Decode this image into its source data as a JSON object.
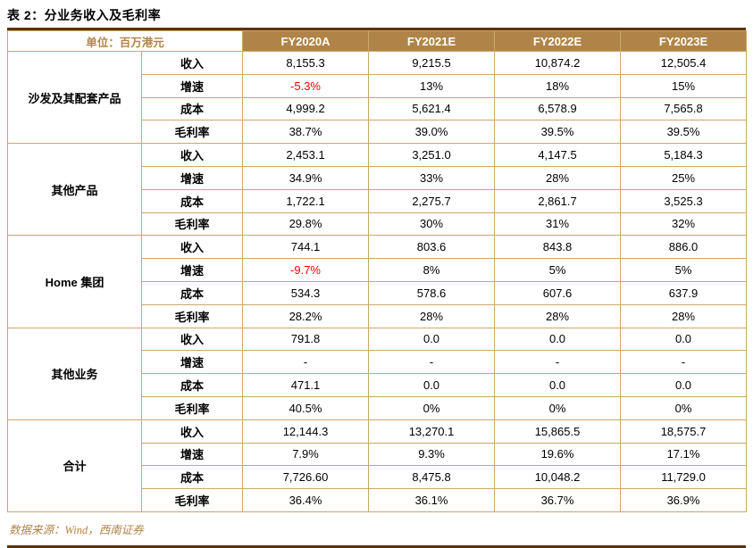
{
  "title": "表 2：分业务收入及毛利率",
  "unit_label": "单位：百万港元",
  "columns": [
    "FY2020A",
    "FY2021E",
    "FY2022E",
    "FY2023E"
  ],
  "groups": [
    {
      "name": "沙发及其配套产品",
      "rows": [
        {
          "metric": "收入",
          "values": [
            "8,155.3",
            "9,215.5",
            "10,874.2",
            "12,505.4"
          ],
          "red": []
        },
        {
          "metric": "增速",
          "values": [
            "-5.3%",
            "13%",
            "18%",
            "15%"
          ],
          "red": [
            0
          ]
        },
        {
          "metric": "成本",
          "values": [
            "4,999.2",
            "5,621.4",
            "6,578.9",
            "7,565.8"
          ],
          "red": []
        },
        {
          "metric": "毛利率",
          "values": [
            "38.7%",
            "39.0%",
            "39.5%",
            "39.5%"
          ],
          "red": []
        }
      ]
    },
    {
      "name": "其他产品",
      "rows": [
        {
          "metric": "收入",
          "values": [
            "2,453.1",
            "3,251.0",
            "4,147.5",
            "5,184.3"
          ],
          "red": []
        },
        {
          "metric": "增速",
          "values": [
            "34.9%",
            "33%",
            "28%",
            "25%"
          ],
          "red": []
        },
        {
          "metric": "成本",
          "values": [
            "1,722.1",
            "2,275.7",
            "2,861.7",
            "3,525.3"
          ],
          "red": []
        },
        {
          "metric": "毛利率",
          "values": [
            "29.8%",
            "30%",
            "31%",
            "32%"
          ],
          "red": []
        }
      ]
    },
    {
      "name": "Home 集团",
      "rows": [
        {
          "metric": "收入",
          "values": [
            "744.1",
            "803.6",
            "843.8",
            "886.0"
          ],
          "red": []
        },
        {
          "metric": "增速",
          "values": [
            "-9.7%",
            "8%",
            "5%",
            "5%"
          ],
          "red": [
            0
          ]
        },
        {
          "metric": "成本",
          "values": [
            "534.3",
            "578.6",
            "607.6",
            "637.9"
          ],
          "red": []
        },
        {
          "metric": "毛利率",
          "values": [
            "28.2%",
            "28%",
            "28%",
            "28%"
          ],
          "red": []
        }
      ]
    },
    {
      "name": "其他业务",
      "rows": [
        {
          "metric": "收入",
          "values": [
            "791.8",
            "0.0",
            "0.0",
            "0.0"
          ],
          "red": []
        },
        {
          "metric": "增速",
          "values": [
            "-",
            "-",
            "-",
            "-"
          ],
          "red": []
        },
        {
          "metric": "成本",
          "values": [
            "471.1",
            "0.0",
            "0.0",
            "0.0"
          ],
          "red": []
        },
        {
          "metric": "毛利率",
          "values": [
            "40.5%",
            "0%",
            "0%",
            "0%"
          ],
          "red": []
        }
      ]
    },
    {
      "name": "合计",
      "rows": [
        {
          "metric": "收入",
          "values": [
            "12,144.3",
            "13,270.1",
            "15,865.5",
            "18,575.7"
          ],
          "red": []
        },
        {
          "metric": "增速",
          "values": [
            "7.9%",
            "9.3%",
            "19.6%",
            "17.1%"
          ],
          "red": []
        },
        {
          "metric": "成本",
          "values": [
            "7,726.60",
            "8,475.8",
            "10,048.2",
            "11,729.0"
          ],
          "red": []
        },
        {
          "metric": "毛利率",
          "values": [
            "36.4%",
            "36.1%",
            "36.7%",
            "36.9%"
          ],
          "red": []
        }
      ]
    }
  ],
  "source": "数据来源：Wind，西南证券",
  "colors": {
    "header_bg": "#B08448",
    "accent_gold": "#B08448",
    "border_gold": "#CBA769",
    "dark_rule": "#5E3208",
    "negative": "#FF0000"
  }
}
